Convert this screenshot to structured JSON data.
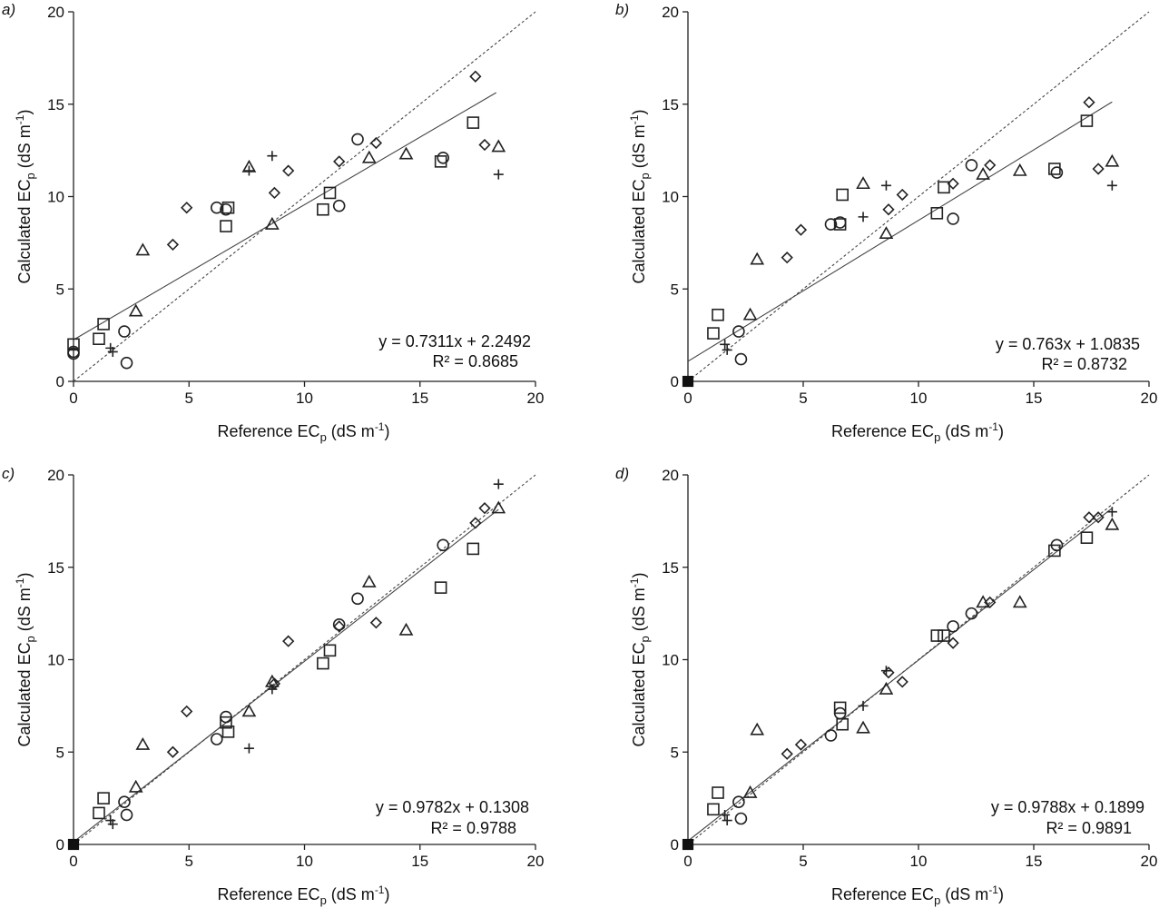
{
  "chart_data": [
    {
      "type": "scatter",
      "panel_label": "a)",
      "xlabel_main": "Reference EC",
      "xlabel_sub": "p",
      "xlabel_unit": " (dS m",
      "xlabel_sup": "-1",
      "xlabel_end": ")",
      "ylabel_main": "Calculated EC",
      "ylabel_sub": "p",
      "ylabel_unit": "  (dS m",
      "ylabel_sup": "-1",
      "ylabel_end": ")",
      "xlim": [
        0,
        20
      ],
      "ylim": [
        0,
        20
      ],
      "xticks": [
        "0",
        "5",
        "10",
        "15",
        "20"
      ],
      "yticks": [
        "0",
        "5",
        "10",
        "15",
        "20"
      ],
      "equation": "y = 0.7311x + 2.2492",
      "r2_text": "R² = 0.8685",
      "fit": {
        "slope": 0.7311,
        "intercept": 2.2492,
        "x_range": [
          0,
          18.3
        ]
      },
      "one_to_one": true,
      "series": [
        {
          "name": "circle",
          "marker": "circle",
          "points": [
            [
              0,
              1.6
            ],
            [
              0,
              1.5
            ],
            [
              2.2,
              2.7
            ],
            [
              2.3,
              1.0
            ],
            [
              6.2,
              9.4
            ],
            [
              6.6,
              9.3
            ],
            [
              11.5,
              9.5
            ],
            [
              12.3,
              13.1
            ],
            [
              16,
              12.1
            ]
          ]
        },
        {
          "name": "square",
          "marker": "square",
          "points": [
            [
              0,
              2
            ],
            [
              1.1,
              2.3
            ],
            [
              1.3,
              3.1
            ],
            [
              6.6,
              8.4
            ],
            [
              6.7,
              9.4
            ],
            [
              10.8,
              9.3
            ],
            [
              11.1,
              10.2
            ],
            [
              15.9,
              11.9
            ],
            [
              17.3,
              14
            ]
          ]
        },
        {
          "name": "triangle",
          "marker": "triangle",
          "points": [
            [
              2.7,
              3.8
            ],
            [
              3,
              7.1
            ],
            [
              7.6,
              11.6
            ],
            [
              8.6,
              8.5
            ],
            [
              12.8,
              12.1
            ],
            [
              14.4,
              12.3
            ],
            [
              18.4,
              12.7
            ]
          ]
        },
        {
          "name": "diamond",
          "marker": "diamond",
          "points": [
            [
              4.3,
              7.4
            ],
            [
              4.9,
              9.4
            ],
            [
              8.7,
              10.2
            ],
            [
              9.3,
              11.4
            ],
            [
              11.5,
              11.9
            ],
            [
              13.1,
              12.9
            ],
            [
              17.4,
              16.5
            ],
            [
              17.8,
              12.8
            ]
          ]
        },
        {
          "name": "plus",
          "marker": "plus",
          "points": [
            [
              1.6,
              1.8
            ],
            [
              1.7,
              1.6
            ],
            [
              7.6,
              11.4
            ],
            [
              8.6,
              12.2
            ],
            [
              18.4,
              11.2
            ]
          ]
        }
      ]
    },
    {
      "type": "scatter",
      "panel_label": "b)",
      "xlabel_main": "Reference EC",
      "xlabel_sub": "p",
      "xlabel_unit": " (dS m",
      "xlabel_sup": "-1",
      "xlabel_end": ")",
      "ylabel_main": "Calculated EC",
      "ylabel_sub": "p",
      "ylabel_unit": "  (dS m",
      "ylabel_sup": "-1",
      "ylabel_end": ")",
      "xlim": [
        0,
        20
      ],
      "ylim": [
        0,
        20
      ],
      "xticks": [
        "0",
        "5",
        "10",
        "15",
        "20"
      ],
      "yticks": [
        "0",
        "5",
        "10",
        "15",
        "20"
      ],
      "equation": "y = 0.763x + 1.0835",
      "r2_text": "R² = 0.8732",
      "fit": {
        "slope": 0.763,
        "intercept": 1.0835,
        "x_range": [
          0,
          18.4
        ]
      },
      "one_to_one": true,
      "series": [
        {
          "name": "origin",
          "marker": "filled-square",
          "points": [
            [
              0,
              0
            ]
          ]
        },
        {
          "name": "circle",
          "marker": "circle",
          "points": [
            [
              2.2,
              2.7
            ],
            [
              2.3,
              1.2
            ],
            [
              6.2,
              8.5
            ],
            [
              6.6,
              8.6
            ],
            [
              11.5,
              8.8
            ],
            [
              12.3,
              11.7
            ],
            [
              16,
              11.3
            ]
          ]
        },
        {
          "name": "square",
          "marker": "square",
          "points": [
            [
              1.1,
              2.6
            ],
            [
              1.3,
              3.6
            ],
            [
              6.6,
              8.5
            ],
            [
              6.7,
              10.1
            ],
            [
              10.8,
              9.1
            ],
            [
              11.1,
              10.5
            ],
            [
              15.9,
              11.5
            ],
            [
              17.3,
              14.1
            ]
          ]
        },
        {
          "name": "triangle",
          "marker": "triangle",
          "points": [
            [
              2.7,
              3.6
            ],
            [
              3,
              6.6
            ],
            [
              7.6,
              10.7
            ],
            [
              8.6,
              8
            ],
            [
              12.8,
              11.2
            ],
            [
              14.4,
              11.4
            ],
            [
              18.4,
              11.9
            ]
          ]
        },
        {
          "name": "diamond",
          "marker": "diamond",
          "points": [
            [
              4.3,
              6.7
            ],
            [
              4.9,
              8.2
            ],
            [
              8.7,
              9.3
            ],
            [
              9.3,
              10.1
            ],
            [
              11.5,
              10.7
            ],
            [
              13.1,
              11.7
            ],
            [
              17.4,
              15.1
            ],
            [
              17.8,
              11.5
            ]
          ]
        },
        {
          "name": "plus",
          "marker": "plus",
          "points": [
            [
              1.6,
              2
            ],
            [
              1.7,
              1.7
            ],
            [
              7.6,
              8.9
            ],
            [
              8.6,
              10.6
            ],
            [
              18.4,
              10.6
            ]
          ]
        }
      ]
    },
    {
      "type": "scatter",
      "panel_label": "c)",
      "xlabel_main": "Reference EC",
      "xlabel_sub": "p",
      "xlabel_unit": " (dS m",
      "xlabel_sup": "-1",
      "xlabel_end": ")",
      "ylabel_main": "Calculated EC",
      "ylabel_sub": "p",
      "ylabel_unit": "  (dS m",
      "ylabel_sup": "-1",
      "ylabel_end": ")",
      "xlim": [
        0,
        20
      ],
      "ylim": [
        0,
        20
      ],
      "xticks": [
        "0",
        "5",
        "10",
        "15",
        "20"
      ],
      "yticks": [
        "0",
        "5",
        "10",
        "15",
        "20"
      ],
      "equation": "y = 0.9782x + 0.1308",
      "r2_text": "R² = 0.9788",
      "fit": {
        "slope": 0.9782,
        "intercept": 0.1308,
        "x_range": [
          0,
          18.4
        ]
      },
      "one_to_one": true,
      "series": [
        {
          "name": "origin",
          "marker": "filled-square",
          "points": [
            [
              0,
              0
            ]
          ]
        },
        {
          "name": "circle",
          "marker": "circle",
          "points": [
            [
              2.2,
              2.3
            ],
            [
              2.3,
              1.6
            ],
            [
              6.2,
              5.7
            ],
            [
              6.6,
              6.9
            ],
            [
              11.5,
              11.9
            ],
            [
              12.3,
              13.3
            ],
            [
              16,
              16.2
            ]
          ]
        },
        {
          "name": "square",
          "marker": "square",
          "points": [
            [
              1.1,
              1.7
            ],
            [
              1.3,
              2.5
            ],
            [
              6.6,
              6.6
            ],
            [
              6.7,
              6.1
            ],
            [
              10.8,
              9.8
            ],
            [
              11.1,
              10.5
            ],
            [
              15.9,
              13.9
            ],
            [
              17.3,
              16
            ]
          ]
        },
        {
          "name": "triangle",
          "marker": "triangle",
          "points": [
            [
              2.7,
              3.1
            ],
            [
              3,
              5.4
            ],
            [
              7.6,
              7.2
            ],
            [
              8.6,
              8.8
            ],
            [
              12.8,
              14.2
            ],
            [
              14.4,
              11.6
            ],
            [
              18.4,
              18.2
            ]
          ]
        },
        {
          "name": "diamond",
          "marker": "diamond",
          "points": [
            [
              4.3,
              5
            ],
            [
              4.9,
              7.2
            ],
            [
              8.7,
              8.7
            ],
            [
              9.3,
              11
            ],
            [
              11.5,
              11.8
            ],
            [
              13.1,
              12
            ],
            [
              17.4,
              17.4
            ],
            [
              17.8,
              18.2
            ]
          ]
        },
        {
          "name": "plus",
          "marker": "plus",
          "points": [
            [
              1.6,
              1.3
            ],
            [
              1.7,
              1.1
            ],
            [
              7.6,
              5.2
            ],
            [
              8.6,
              8.4
            ],
            [
              18.4,
              19.5
            ]
          ]
        }
      ]
    },
    {
      "type": "scatter",
      "panel_label": "d)",
      "xlabel_main": "Reference EC",
      "xlabel_sub": "p",
      "xlabel_unit": " (dS m",
      "xlabel_sup": "-1",
      "xlabel_end": ")",
      "ylabel_main": "Calculated EC",
      "ylabel_sub": "p",
      "ylabel_unit": "  (dS m",
      "ylabel_sup": "-1",
      "ylabel_end": ")",
      "xlim": [
        0,
        20
      ],
      "ylim": [
        0,
        20
      ],
      "xticks": [
        "0",
        "5",
        "10",
        "15",
        "20"
      ],
      "yticks": [
        "0",
        "5",
        "10",
        "15",
        "20"
      ],
      "equation": "y = 0.9788x + 0.1899",
      "r2_text": "R² = 0.9891",
      "fit": {
        "slope": 0.9788,
        "intercept": 0.1899,
        "x_range": [
          0,
          18.4
        ]
      },
      "one_to_one": true,
      "series": [
        {
          "name": "origin",
          "marker": "filled-square",
          "points": [
            [
              0,
              0
            ]
          ]
        },
        {
          "name": "circle",
          "marker": "circle",
          "points": [
            [
              2.2,
              2.3
            ],
            [
              2.3,
              1.4
            ],
            [
              6.2,
              5.9
            ],
            [
              6.6,
              7.1
            ],
            [
              11.5,
              11.8
            ],
            [
              12.3,
              12.5
            ],
            [
              16,
              16.2
            ]
          ]
        },
        {
          "name": "square",
          "marker": "square",
          "points": [
            [
              1.1,
              1.9
            ],
            [
              1.3,
              2.8
            ],
            [
              6.6,
              7.4
            ],
            [
              6.7,
              6.5
            ],
            [
              10.8,
              11.3
            ],
            [
              11.1,
              11.3
            ],
            [
              15.9,
              15.9
            ],
            [
              17.3,
              16.6
            ]
          ]
        },
        {
          "name": "triangle",
          "marker": "triangle",
          "points": [
            [
              2.7,
              2.8
            ],
            [
              3,
              6.2
            ],
            [
              7.6,
              6.3
            ],
            [
              8.6,
              8.4
            ],
            [
              12.8,
              13.1
            ],
            [
              14.4,
              13.1
            ],
            [
              18.4,
              17.3
            ]
          ]
        },
        {
          "name": "diamond",
          "marker": "diamond",
          "points": [
            [
              4.3,
              4.9
            ],
            [
              4.9,
              5.4
            ],
            [
              8.7,
              9.3
            ],
            [
              9.3,
              8.8
            ],
            [
              11.5,
              10.9
            ],
            [
              13.1,
              13.1
            ],
            [
              17.4,
              17.7
            ],
            [
              17.8,
              17.7
            ]
          ]
        },
        {
          "name": "plus",
          "marker": "plus",
          "points": [
            [
              1.6,
              1.6
            ],
            [
              1.7,
              1.3
            ],
            [
              7.6,
              7.5
            ],
            [
              8.6,
              9.4
            ],
            [
              18.4,
              18
            ]
          ]
        }
      ]
    }
  ]
}
